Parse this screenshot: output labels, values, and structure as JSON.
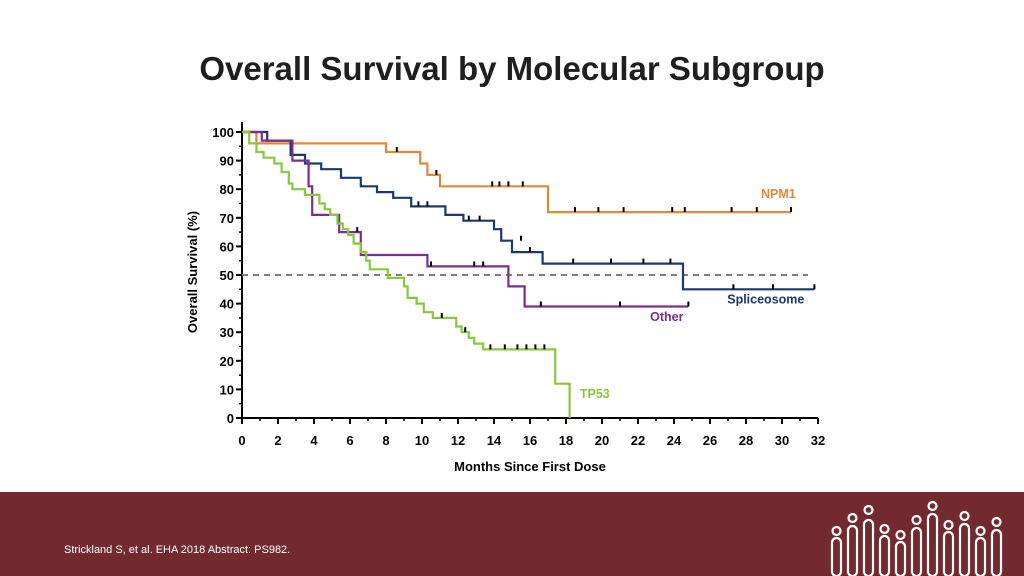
{
  "slide": {
    "title": "Overall Survival by Molecular Subgroup",
    "citation": "Strickland S, et al. EHA 2018 Abstract: PS982."
  },
  "colors": {
    "npm1": "#e0893a",
    "spliceosome": "#1a3a6e",
    "other": "#7a2e8e",
    "tp53": "#8cc63f",
    "footer": "#722a2e",
    "axis": "#000000",
    "reference": "#7f7f7f"
  },
  "icons": {
    "logo": "bars-and-circles-logo"
  },
  "chart_data": {
    "type": "line",
    "step": true,
    "title": "",
    "xlabel": "Months Since First  Dose",
    "ylabel": "Overall  Survival (%)",
    "xlim": [
      0,
      32
    ],
    "ylim": [
      0,
      100
    ],
    "xticks": [
      0,
      2,
      4,
      6,
      8,
      10,
      12,
      14,
      16,
      18,
      20,
      22,
      24,
      26,
      28,
      30,
      32
    ],
    "yticks": [
      0,
      10,
      20,
      30,
      40,
      50,
      60,
      70,
      80,
      90,
      100
    ],
    "reference_line": {
      "y": 50,
      "style": "dashed"
    },
    "grid": false,
    "series": [
      {
        "name": "NPM1",
        "color": "#e0893a",
        "points": [
          [
            0,
            100
          ],
          [
            0.8,
            100
          ],
          [
            0.8,
            96
          ],
          [
            8,
            96
          ],
          [
            8,
            93
          ],
          [
            9.9,
            93
          ],
          [
            9.9,
            89
          ],
          [
            10.3,
            89
          ],
          [
            10.3,
            85
          ],
          [
            11,
            85
          ],
          [
            11,
            81
          ],
          [
            17,
            81
          ],
          [
            17,
            72
          ],
          [
            30.5,
            72
          ]
        ],
        "censored": [
          [
            8.6,
            93
          ],
          [
            10.8,
            85
          ],
          [
            13.9,
            81
          ],
          [
            14.3,
            81
          ],
          [
            14.8,
            81
          ],
          [
            15.6,
            81
          ],
          [
            18.5,
            72
          ],
          [
            19.8,
            72
          ],
          [
            21.2,
            72
          ],
          [
            23.9,
            72
          ],
          [
            24.6,
            72
          ],
          [
            27.2,
            72
          ],
          [
            28.6,
            72
          ],
          [
            30.5,
            72
          ]
        ]
      },
      {
        "name": "Spliceosome",
        "color": "#1a3a6e",
        "points": [
          [
            0,
            100
          ],
          [
            1.4,
            100
          ],
          [
            1.4,
            97
          ],
          [
            2.7,
            97
          ],
          [
            2.7,
            92
          ],
          [
            3.5,
            92
          ],
          [
            3.5,
            89
          ],
          [
            4.4,
            89
          ],
          [
            4.4,
            87
          ],
          [
            5.5,
            87
          ],
          [
            5.5,
            84
          ],
          [
            6.6,
            84
          ],
          [
            6.6,
            81
          ],
          [
            7.5,
            81
          ],
          [
            7.5,
            79
          ],
          [
            8.4,
            79
          ],
          [
            8.4,
            77
          ],
          [
            9.4,
            77
          ],
          [
            9.4,
            74
          ],
          [
            11.3,
            74
          ],
          [
            11.3,
            71
          ],
          [
            12.3,
            71
          ],
          [
            12.3,
            69
          ],
          [
            14,
            69
          ],
          [
            14,
            66
          ],
          [
            14.4,
            66
          ],
          [
            14.4,
            62
          ],
          [
            15,
            62
          ],
          [
            15,
            58
          ],
          [
            16.7,
            58
          ],
          [
            16.7,
            54
          ],
          [
            24.5,
            54
          ],
          [
            24.5,
            45
          ],
          [
            31.8,
            45
          ]
        ],
        "censored": [
          [
            9.8,
            74
          ],
          [
            10.3,
            74
          ],
          [
            12.6,
            69
          ],
          [
            13.2,
            69
          ],
          [
            15.5,
            62
          ],
          [
            16,
            58
          ],
          [
            18.4,
            54
          ],
          [
            20.5,
            54
          ],
          [
            22.3,
            54
          ],
          [
            23.8,
            54
          ],
          [
            27.3,
            45
          ],
          [
            29.5,
            45
          ],
          [
            31.8,
            45
          ]
        ]
      },
      {
        "name": "Other",
        "color": "#7a2e8e",
        "points": [
          [
            0,
            100
          ],
          [
            1.1,
            100
          ],
          [
            1.1,
            97
          ],
          [
            2.8,
            97
          ],
          [
            2.8,
            90
          ],
          [
            3.7,
            90
          ],
          [
            3.7,
            81
          ],
          [
            3.9,
            81
          ],
          [
            3.9,
            71
          ],
          [
            5.4,
            71
          ],
          [
            5.4,
            65
          ],
          [
            6.6,
            65
          ],
          [
            6.6,
            57
          ],
          [
            10.3,
            57
          ],
          [
            10.3,
            53
          ],
          [
            14.8,
            53
          ],
          [
            14.8,
            46
          ],
          [
            15.7,
            46
          ],
          [
            15.7,
            39
          ],
          [
            24.8,
            39
          ]
        ],
        "censored": [
          [
            6.4,
            65
          ],
          [
            10.5,
            53
          ],
          [
            12.9,
            53
          ],
          [
            13.4,
            53
          ],
          [
            16.6,
            39
          ],
          [
            21,
            39
          ],
          [
            24.8,
            39
          ]
        ]
      },
      {
        "name": "TP53",
        "color": "#8cc63f",
        "points": [
          [
            0,
            100
          ],
          [
            0.4,
            100
          ],
          [
            0.4,
            96
          ],
          [
            0.8,
            96
          ],
          [
            0.8,
            93
          ],
          [
            1.2,
            93
          ],
          [
            1.2,
            91
          ],
          [
            1.8,
            91
          ],
          [
            1.8,
            89
          ],
          [
            2.2,
            89
          ],
          [
            2.2,
            86
          ],
          [
            2.6,
            86
          ],
          [
            2.6,
            82
          ],
          [
            2.8,
            82
          ],
          [
            2.8,
            80
          ],
          [
            3.5,
            80
          ],
          [
            3.5,
            78
          ],
          [
            4.3,
            78
          ],
          [
            4.3,
            75
          ],
          [
            4.6,
            75
          ],
          [
            4.6,
            73
          ],
          [
            4.9,
            73
          ],
          [
            4.9,
            71
          ],
          [
            5.3,
            71
          ],
          [
            5.3,
            68
          ],
          [
            5.6,
            68
          ],
          [
            5.6,
            66
          ],
          [
            5.9,
            66
          ],
          [
            5.9,
            64
          ],
          [
            6.2,
            64
          ],
          [
            6.2,
            61
          ],
          [
            6.6,
            61
          ],
          [
            6.6,
            58
          ],
          [
            6.9,
            58
          ],
          [
            6.9,
            55
          ],
          [
            7.1,
            55
          ],
          [
            7.1,
            52
          ],
          [
            8.1,
            52
          ],
          [
            8.1,
            49
          ],
          [
            9,
            49
          ],
          [
            9,
            46
          ],
          [
            9.2,
            46
          ],
          [
            9.2,
            42
          ],
          [
            9.7,
            42
          ],
          [
            9.7,
            40
          ],
          [
            10.1,
            40
          ],
          [
            10.1,
            37
          ],
          [
            10.6,
            37
          ],
          [
            10.6,
            35
          ],
          [
            11.9,
            35
          ],
          [
            11.9,
            32
          ],
          [
            12.2,
            32
          ],
          [
            12.2,
            30
          ],
          [
            12.6,
            30
          ],
          [
            12.6,
            28
          ],
          [
            12.9,
            28
          ],
          [
            12.9,
            26
          ],
          [
            13.4,
            26
          ],
          [
            13.4,
            24
          ],
          [
            17.4,
            24
          ],
          [
            17.4,
            12
          ],
          [
            18.2,
            12
          ],
          [
            18.2,
            0
          ]
        ],
        "censored": [
          [
            11.1,
            35
          ],
          [
            12.4,
            30
          ],
          [
            13.8,
            24
          ],
          [
            14.6,
            24
          ],
          [
            15.3,
            24
          ],
          [
            15.8,
            24
          ],
          [
            16.3,
            24
          ],
          [
            16.8,
            24
          ]
        ]
      }
    ],
    "series_labels": [
      {
        "series": "NPM1",
        "text": "NPM1",
        "x": 29.8,
        "y": 77
      },
      {
        "series": "Spliceosome",
        "text": "Spliceosome",
        "x": 29.1,
        "y": 40
      },
      {
        "series": "Other",
        "text": "Other",
        "x": 23.6,
        "y": 34
      },
      {
        "series": "TP53",
        "text": "TP53",
        "x": 19.6,
        "y": 7
      }
    ]
  }
}
